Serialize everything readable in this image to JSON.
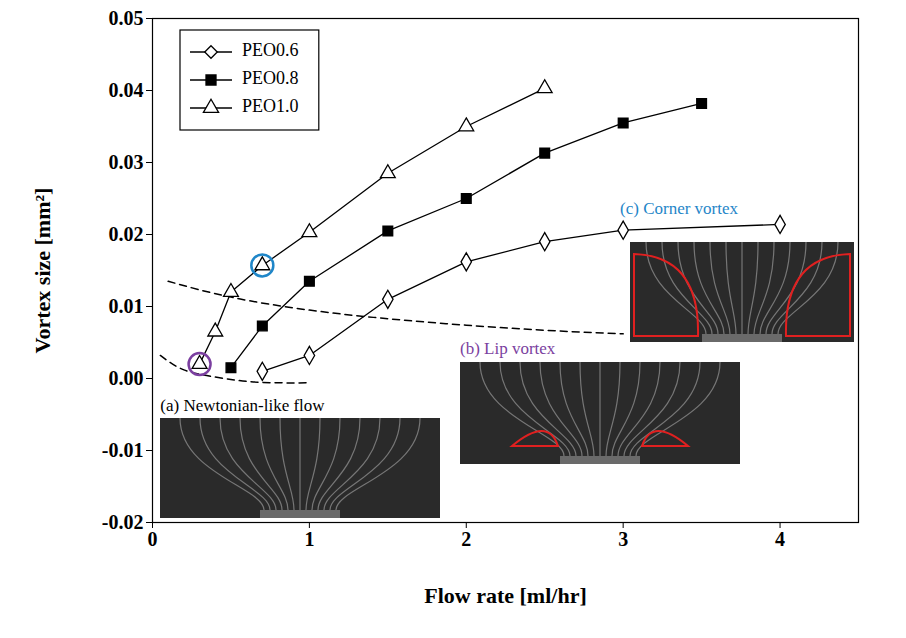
{
  "chart_data": {
    "type": "line",
    "x_label": "Flow rate [ml/hr]",
    "y_label": "Vortex size [mm²]",
    "xlim": [
      0,
      4.5
    ],
    "xticks": [
      0,
      1,
      2,
      3,
      4
    ],
    "ylim": [
      -0.02,
      0.05
    ],
    "yticks": [
      -0.02,
      -0.01,
      {
        "value": 0,
        "label": "0.00"
      },
      0.01,
      0.02,
      0.03,
      0.04,
      0.05
    ],
    "grid": false,
    "legend": "top-left",
    "series": [
      {
        "name": "PEO0.6",
        "color": "#000000",
        "marker": "diamond-open",
        "line_style": "solid",
        "x": [
          0.7,
          1.0,
          1.5,
          2.0,
          2.5,
          3.0,
          4.0
        ],
        "values": [
          0.001,
          0.0032,
          0.011,
          0.0162,
          0.019,
          0.0206,
          0.0214
        ]
      },
      {
        "name": "PEO0.8",
        "color": "#000000",
        "marker": "square",
        "line_style": "solid",
        "x": [
          0.5,
          0.7,
          1.0,
          1.5,
          2.0,
          2.5,
          3.0,
          3.5
        ],
        "values": [
          0.0015,
          0.0073,
          0.0135,
          0.0205,
          0.025,
          0.0313,
          0.0355,
          0.0382
        ]
      },
      {
        "name": "PEO1.0",
        "color": "#000000",
        "marker": "triangle-open",
        "line_style": "solid",
        "x": [
          0.3,
          0.4,
          0.5,
          0.7,
          1.0,
          1.5,
          2.0,
          2.5
        ],
        "values": [
          0.002,
          0.0065,
          0.012,
          0.0157,
          0.0203,
          0.0285,
          0.035,
          0.0403
        ]
      }
    ],
    "boundary_lines": [
      {
        "color": "#000000",
        "line_style": "dashed",
        "x": [
          0.1,
          0.5,
          1.0,
          1.5,
          2.0,
          2.5,
          3.0
        ],
        "values": [
          0.0135,
          0.0113,
          0.0095,
          0.0083,
          0.0074,
          0.0067,
          0.0062
        ]
      },
      {
        "color": "#000000",
        "line_style": "dashed",
        "x": [
          0.05,
          0.2,
          0.4,
          0.6,
          0.8,
          1.0
        ],
        "values": [
          0.0032,
          0.0012,
          0.0002,
          -0.0004,
          -0.0006,
          -0.0006
        ]
      }
    ],
    "highlights": [
      {
        "x": 0.3,
        "y": 0.002,
        "color": "#7b3fa0"
      },
      {
        "x": 0.7,
        "y": 0.0157,
        "color": "#1f86c8"
      }
    ],
    "annotations": [
      {
        "text": "(a) Newtonian-like flow",
        "x": 0.05,
        "y": -0.0038,
        "color": "#000000"
      },
      {
        "text": "(b) Lip vortex",
        "x": 1.96,
        "y": 0.0042,
        "color": "#7b3fa0"
      },
      {
        "text": "(c) Corner vortex",
        "x": 2.98,
        "y": 0.0236,
        "color": "#1f86c8"
      }
    ]
  }
}
